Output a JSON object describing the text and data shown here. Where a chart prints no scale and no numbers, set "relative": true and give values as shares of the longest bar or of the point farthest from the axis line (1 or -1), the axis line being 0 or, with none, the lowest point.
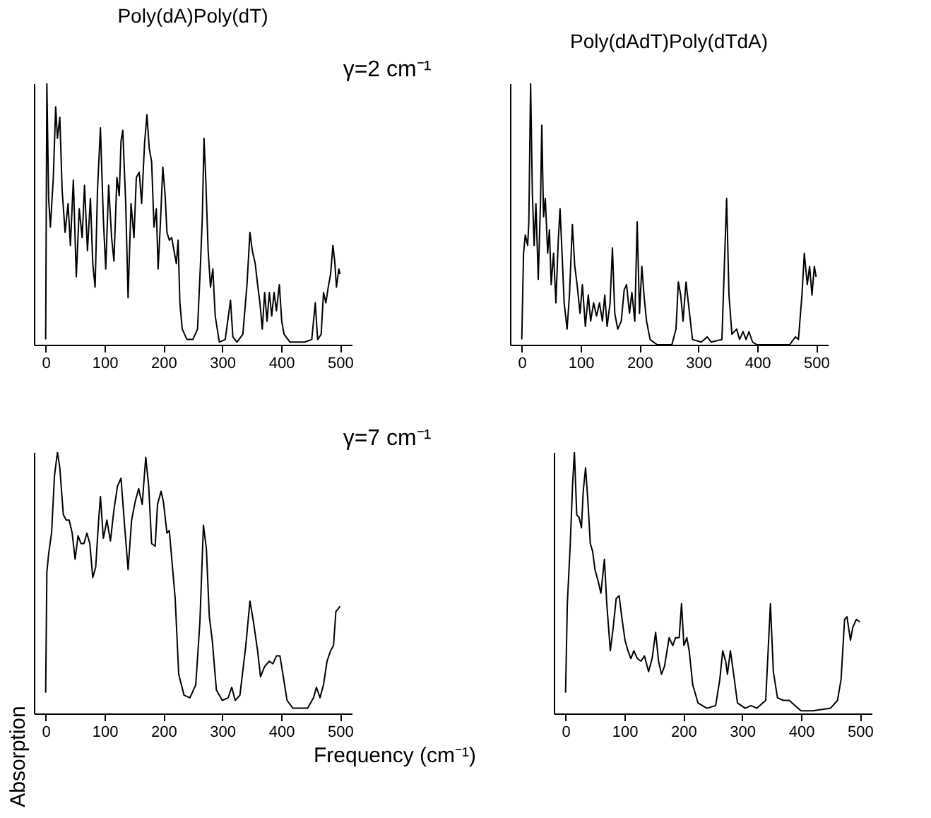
{
  "chart_data": [
    {
      "type": "line",
      "title": "Poly(dA)Poly(dT)",
      "annotations": [
        "γ=2 cm⁻¹"
      ],
      "relative": true,
      "tick_labels": "x",
      "xlim": [
        -20,
        520
      ],
      "xticks": [
        0,
        100,
        200,
        300,
        400,
        500
      ],
      "x": [
        0,
        2,
        5,
        8,
        13,
        17,
        20,
        24,
        28,
        33,
        38,
        42,
        47,
        52,
        57,
        62,
        66,
        71,
        76,
        80,
        84,
        88,
        93,
        98,
        102,
        107,
        112,
        116,
        121,
        125,
        128,
        131,
        136,
        140,
        145,
        150,
        154,
        159,
        163,
        168,
        172,
        176,
        180,
        184,
        188,
        191,
        195,
        199,
        203,
        206,
        210,
        214,
        218,
        222,
        225,
        228,
        232,
        240,
        250,
        258,
        263,
        266,
        269,
        272,
        276,
        280,
        284,
        288,
        295,
        305,
        314,
        318,
        325,
        335,
        342,
        347,
        351,
        356,
        360,
        364,
        368,
        372,
        376,
        380,
        384,
        388,
        392,
        397,
        401,
        405,
        415,
        440,
        452,
        458,
        462,
        468,
        472,
        476,
        480,
        484,
        488,
        491,
        494,
        498,
        500
      ],
      "series": [
        {
          "color": "#000000",
          "values": [
            0.02,
            1.0,
            0.56,
            0.45,
            0.64,
            0.91,
            0.79,
            0.87,
            0.59,
            0.43,
            0.54,
            0.38,
            0.63,
            0.26,
            0.52,
            0.41,
            0.61,
            0.36,
            0.56,
            0.31,
            0.22,
            0.59,
            0.83,
            0.48,
            0.29,
            0.61,
            0.41,
            0.32,
            0.64,
            0.57,
            0.78,
            0.82,
            0.54,
            0.18,
            0.54,
            0.41,
            0.64,
            0.66,
            0.54,
            0.77,
            0.88,
            0.75,
            0.7,
            0.45,
            0.52,
            0.29,
            0.47,
            0.68,
            0.57,
            0.43,
            0.4,
            0.41,
            0.36,
            0.31,
            0.4,
            0.16,
            0.06,
            0.02,
            0.02,
            0.06,
            0.31,
            0.48,
            0.79,
            0.63,
            0.36,
            0.22,
            0.29,
            0.11,
            0.01,
            0.02,
            0.17,
            0.03,
            0.01,
            0.04,
            0.23,
            0.43,
            0.36,
            0.31,
            0.23,
            0.16,
            0.06,
            0.2,
            0.09,
            0.2,
            0.11,
            0.2,
            0.13,
            0.23,
            0.09,
            0.04,
            0.01,
            0.01,
            0.02,
            0.16,
            0.02,
            0.04,
            0.2,
            0.16,
            0.22,
            0.27,
            0.38,
            0.32,
            0.22,
            0.29,
            0.27
          ]
        }
      ]
    },
    {
      "type": "line",
      "title": "Poly(dAdT)Poly(dTdA)",
      "relative": true,
      "tick_labels": "x",
      "xlim": [
        -20,
        520
      ],
      "xticks": [
        0,
        100,
        200,
        300,
        400,
        500
      ],
      "x": [
        0,
        3,
        6,
        10,
        12,
        15,
        18,
        21,
        24,
        28,
        32,
        34,
        37,
        40,
        44,
        47,
        50,
        54,
        58,
        62,
        65,
        69,
        72,
        77,
        81,
        86,
        90,
        94,
        99,
        103,
        108,
        113,
        117,
        122,
        127,
        132,
        137,
        141,
        145,
        150,
        154,
        158,
        163,
        169,
        174,
        178,
        183,
        187,
        192,
        196,
        200,
        204,
        208,
        212,
        218,
        230,
        255,
        262,
        266,
        270,
        274,
        279,
        283,
        290,
        305,
        315,
        322,
        340,
        348,
        352,
        357,
        365,
        370,
        376,
        381,
        386,
        392,
        400,
        455,
        465,
        470,
        476,
        480,
        485,
        489,
        493,
        497,
        500
      ],
      "series": [
        {
          "color": "#000000",
          "values": [
            0.02,
            0.35,
            0.42,
            0.38,
            0.47,
            1.0,
            0.58,
            0.38,
            0.54,
            0.25,
            0.56,
            0.84,
            0.49,
            0.56,
            0.35,
            0.44,
            0.23,
            0.35,
            0.16,
            0.4,
            0.52,
            0.32,
            0.16,
            0.06,
            0.19,
            0.46,
            0.3,
            0.23,
            0.12,
            0.23,
            0.07,
            0.19,
            0.09,
            0.16,
            0.11,
            0.16,
            0.09,
            0.19,
            0.07,
            0.16,
            0.37,
            0.12,
            0.06,
            0.09,
            0.21,
            0.23,
            0.12,
            0.2,
            0.09,
            0.47,
            0.12,
            0.3,
            0.18,
            0.09,
            0.02,
            0.0,
            0.0,
            0.06,
            0.24,
            0.19,
            0.09,
            0.24,
            0.16,
            0.02,
            0.01,
            0.03,
            0.01,
            0.02,
            0.56,
            0.19,
            0.04,
            0.06,
            0.02,
            0.05,
            0.02,
            0.05,
            0.01,
            0.0,
            0.0,
            0.03,
            0.02,
            0.19,
            0.35,
            0.23,
            0.3,
            0.19,
            0.3,
            0.26
          ]
        }
      ]
    },
    {
      "type": "line",
      "annotations": [
        "γ=7 cm⁻¹"
      ],
      "ylabel": "Absorption",
      "xlabel": "Frequency (cm⁻¹)",
      "relative": true,
      "tick_labels": "x",
      "xlim": [
        -20,
        520
      ],
      "xticks": [
        0,
        100,
        200,
        300,
        400,
        500
      ],
      "x": [
        0,
        2,
        5,
        10,
        15,
        20,
        24,
        30,
        35,
        40,
        45,
        50,
        55,
        60,
        65,
        70,
        75,
        80,
        85,
        90,
        93,
        98,
        104,
        110,
        116,
        122,
        128,
        134,
        140,
        146,
        152,
        158,
        164,
        170,
        175,
        180,
        186,
        190,
        196,
        200,
        206,
        210,
        215,
        220,
        226,
        235,
        245,
        255,
        262,
        268,
        273,
        278,
        283,
        290,
        300,
        310,
        316,
        322,
        330,
        340,
        347,
        353,
        360,
        365,
        372,
        380,
        386,
        392,
        398,
        403,
        410,
        420,
        445,
        455,
        460,
        466,
        472,
        478,
        484,
        489,
        493,
        497,
        500
      ],
      "series": [
        {
          "color": "#000000",
          "values": [
            0.08,
            0.54,
            0.61,
            0.69,
            0.91,
            1.0,
            0.94,
            0.76,
            0.74,
            0.74,
            0.69,
            0.59,
            0.68,
            0.65,
            0.65,
            0.69,
            0.65,
            0.52,
            0.56,
            0.74,
            0.83,
            0.67,
            0.74,
            0.66,
            0.78,
            0.87,
            0.9,
            0.72,
            0.55,
            0.74,
            0.81,
            0.86,
            0.8,
            0.98,
            0.87,
            0.65,
            0.64,
            0.8,
            0.85,
            0.81,
            0.69,
            0.7,
            0.57,
            0.44,
            0.15,
            0.07,
            0.06,
            0.11,
            0.35,
            0.72,
            0.63,
            0.37,
            0.28,
            0.09,
            0.05,
            0.06,
            0.1,
            0.05,
            0.07,
            0.26,
            0.43,
            0.35,
            0.24,
            0.14,
            0.18,
            0.2,
            0.19,
            0.22,
            0.22,
            0.15,
            0.05,
            0.02,
            0.02,
            0.06,
            0.1,
            0.06,
            0.11,
            0.2,
            0.24,
            0.26,
            0.39,
            0.4,
            0.41
          ]
        }
      ]
    },
    {
      "type": "line",
      "relative": true,
      "tick_labels": "x",
      "xlim": [
        -20,
        520
      ],
      "xticks": [
        0,
        100,
        200,
        300,
        400,
        500
      ],
      "x": [
        0,
        3,
        8,
        12,
        15,
        19,
        23,
        27,
        30,
        34,
        38,
        42,
        46,
        50,
        56,
        60,
        66,
        70,
        76,
        81,
        86,
        91,
        96,
        101,
        106,
        111,
        116,
        122,
        128,
        134,
        141,
        147,
        153,
        158,
        163,
        168,
        176,
        182,
        187,
        193,
        197,
        201,
        206,
        210,
        216,
        225,
        240,
        255,
        262,
        267,
        272,
        275,
        280,
        285,
        292,
        305,
        315,
        325,
        340,
        348,
        353,
        360,
        370,
        380,
        390,
        400,
        420,
        450,
        462,
        468,
        474,
        478,
        484,
        488,
        494,
        500
      ],
      "series": [
        {
          "color": "#000000",
          "values": [
            0.08,
            0.42,
            0.65,
            0.88,
            1.0,
            0.76,
            0.75,
            0.71,
            0.85,
            0.94,
            0.81,
            0.65,
            0.62,
            0.55,
            0.5,
            0.46,
            0.59,
            0.42,
            0.24,
            0.33,
            0.44,
            0.45,
            0.36,
            0.28,
            0.24,
            0.21,
            0.24,
            0.21,
            0.2,
            0.22,
            0.16,
            0.21,
            0.31,
            0.2,
            0.15,
            0.18,
            0.29,
            0.26,
            0.29,
            0.29,
            0.42,
            0.26,
            0.29,
            0.24,
            0.11,
            0.04,
            0.02,
            0.03,
            0.13,
            0.24,
            0.2,
            0.15,
            0.24,
            0.16,
            0.04,
            0.02,
            0.03,
            0.02,
            0.05,
            0.42,
            0.16,
            0.06,
            0.05,
            0.05,
            0.03,
            0.01,
            0.01,
            0.02,
            0.05,
            0.13,
            0.36,
            0.37,
            0.28,
            0.33,
            0.36,
            0.35
          ]
        }
      ]
    }
  ]
}
